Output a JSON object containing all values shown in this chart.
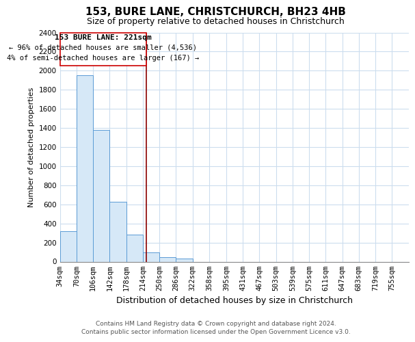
{
  "title": "153, BURE LANE, CHRISTCHURCH, BH23 4HB",
  "subtitle": "Size of property relative to detached houses in Christchurch",
  "xlabel": "Distribution of detached houses by size in Christchurch",
  "ylabel": "Number of detached properties",
  "bar_values": [
    320,
    1950,
    1380,
    630,
    280,
    100,
    45,
    30,
    0,
    0,
    0,
    0,
    0,
    0,
    0,
    0,
    0,
    0,
    0,
    0
  ],
  "bin_labels": [
    "34sqm",
    "70sqm",
    "106sqm",
    "142sqm",
    "178sqm",
    "214sqm",
    "250sqm",
    "286sqm",
    "322sqm",
    "358sqm",
    "395sqm",
    "431sqm",
    "467sqm",
    "503sqm",
    "539sqm",
    "575sqm",
    "611sqm",
    "647sqm",
    "683sqm",
    "719sqm",
    "755sqm"
  ],
  "bar_color": "#d6e8f7",
  "bar_edge_color": "#5b9bd5",
  "property_line_x": 221,
  "bin_edges": [
    34,
    70,
    106,
    142,
    178,
    214,
    250,
    286,
    322,
    358,
    395,
    431,
    467,
    503,
    539,
    575,
    611,
    647,
    683,
    719,
    755
  ],
  "ylim": [
    0,
    2400
  ],
  "yticks": [
    0,
    200,
    400,
    600,
    800,
    1000,
    1200,
    1400,
    1600,
    1800,
    2000,
    2200,
    2400
  ],
  "annotation_text_line1": "153 BURE LANE: 221sqm",
  "annotation_text_line2": "← 96% of detached houses are smaller (4,536)",
  "annotation_text_line3": "4% of semi-detached houses are larger (167) →",
  "footer_line1": "Contains HM Land Registry data © Crown copyright and database right 2024.",
  "footer_line2": "Contains public sector information licensed under the Open Government Licence v3.0.",
  "grid_color": "#ccddee",
  "background_color": "#ffffff",
  "title_fontsize": 11,
  "subtitle_fontsize": 9,
  "xlabel_fontsize": 9,
  "ylabel_fontsize": 8,
  "tick_fontsize": 7.5,
  "footer_fontsize": 6.5
}
